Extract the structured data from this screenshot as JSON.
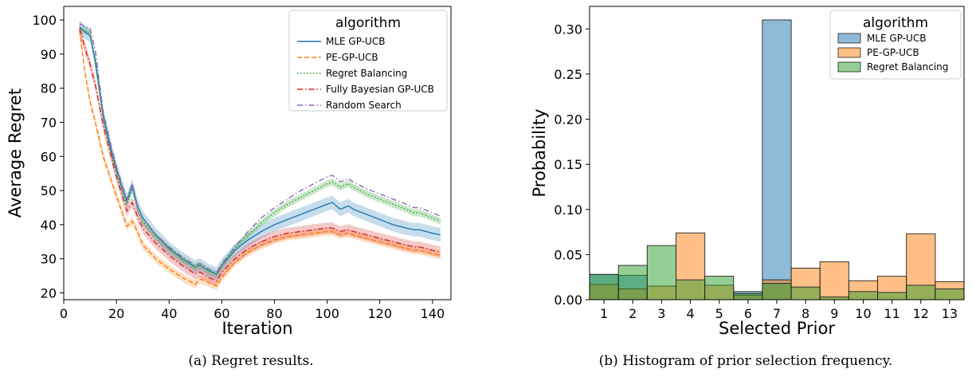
{
  "charts": [
    {
      "type": "line",
      "xlabel": "Iteration",
      "ylabel": "Average Regret",
      "xlim": [
        0,
        147
      ],
      "ylim": [
        18,
        104
      ],
      "xticks": [
        0,
        20,
        40,
        60,
        80,
        100,
        120,
        140
      ],
      "yticks": [
        20,
        30,
        40,
        50,
        60,
        70,
        80,
        90,
        100
      ],
      "legend_title": "algorithm",
      "legend_position": "upper-right",
      "caption": "(a) Regret results.",
      "series": [
        {
          "name": "MLE GP-UCB",
          "color": "#1f77b4",
          "dash": "solid",
          "band": 2.0,
          "x": [
            6,
            8,
            10,
            12,
            15,
            18,
            20,
            22,
            24,
            26,
            28,
            30,
            35,
            40,
            45,
            50,
            51,
            52,
            55,
            58,
            60,
            65,
            70,
            75,
            80,
            85,
            90,
            95,
            100,
            102,
            105,
            108,
            110,
            115,
            120,
            125,
            130,
            133,
            135,
            140,
            143
          ],
          "y": [
            98,
            96.5,
            95.5,
            88,
            72,
            62,
            56.5,
            51.5,
            47,
            51.5,
            45.5,
            42,
            37,
            33,
            30,
            27.5,
            28,
            28,
            26.5,
            25.5,
            28,
            32.5,
            35.5,
            38,
            40,
            41.5,
            43,
            44.5,
            46,
            46.5,
            44.5,
            45.5,
            44.5,
            43,
            41.5,
            40,
            39,
            38.5,
            38.5,
            37.5,
            37
          ]
        },
        {
          "name": "PE-GP-UCB",
          "color": "#ff7f0e",
          "dash": "dashed",
          "band": 1.2,
          "x": [
            6,
            8,
            10,
            12,
            15,
            18,
            20,
            22,
            24,
            26,
            28,
            30,
            35,
            40,
            45,
            50,
            51,
            52,
            55,
            58,
            60,
            65,
            70,
            75,
            80,
            85,
            90,
            95,
            100,
            102,
            105,
            108,
            110,
            115,
            120,
            125,
            130,
            133,
            135,
            140,
            143
          ],
          "y": [
            97,
            85,
            76,
            70,
            60,
            53,
            48.5,
            44,
            39.5,
            41,
            38,
            34,
            30,
            27,
            24.5,
            22.5,
            23.5,
            24,
            23,
            22,
            24.5,
            29,
            32,
            34,
            35.5,
            36.5,
            37,
            37.5,
            38,
            38,
            37,
            37.5,
            37,
            36,
            35,
            34,
            33,
            32.5,
            32.5,
            31.5,
            31
          ]
        },
        {
          "name": "Regret Balancing",
          "color": "#2ca02c",
          "dash": "dotted",
          "band": 1.0,
          "x": [
            6,
            8,
            10,
            12,
            15,
            18,
            20,
            22,
            24,
            26,
            28,
            30,
            35,
            40,
            45,
            50,
            51,
            52,
            55,
            58,
            60,
            65,
            70,
            75,
            80,
            85,
            90,
            95,
            100,
            102,
            105,
            108,
            110,
            115,
            120,
            125,
            130,
            133,
            135,
            140,
            143
          ],
          "y": [
            97,
            97,
            96,
            87,
            71,
            61,
            55.5,
            50.5,
            46,
            50.5,
            44.5,
            41,
            36.5,
            33,
            30,
            27.5,
            28,
            28,
            26.5,
            25.5,
            28,
            33,
            37,
            40.5,
            43.5,
            46,
            48,
            50,
            52,
            52.5,
            51,
            52,
            51,
            49,
            47.5,
            46,
            44.5,
            43.5,
            43.5,
            42,
            41
          ]
        },
        {
          "name": "Fully Bayesian GP-UCB",
          "color": "#d62728",
          "dash": "dashdot",
          "band": 1.6,
          "x": [
            6,
            8,
            10,
            12,
            15,
            18,
            20,
            22,
            24,
            26,
            28,
            30,
            35,
            40,
            45,
            50,
            51,
            52,
            55,
            58,
            60,
            65,
            70,
            75,
            80,
            85,
            90,
            95,
            100,
            102,
            105,
            108,
            110,
            115,
            120,
            125,
            130,
            133,
            135,
            140,
            143
          ],
          "y": [
            97.5,
            92,
            87,
            81,
            69,
            60,
            54,
            49,
            44,
            46.5,
            42.5,
            39,
            34.5,
            31,
            28,
            25.5,
            26,
            26,
            24.5,
            23.5,
            26,
            30,
            33,
            35,
            36.5,
            37.5,
            38,
            38.5,
            39,
            39,
            38,
            38.5,
            38,
            37,
            36,
            35,
            34,
            33.5,
            33.5,
            32.5,
            32
          ]
        },
        {
          "name": "Random Search",
          "color": "#9467bd",
          "dash": "dashdot",
          "band": 0,
          "x": [
            6,
            8,
            10,
            12,
            15,
            18,
            20,
            22,
            24,
            26,
            28,
            30,
            35,
            40,
            45,
            50,
            51,
            52,
            55,
            58,
            60,
            65,
            70,
            75,
            80,
            85,
            90,
            95,
            100,
            102,
            105,
            108,
            110,
            115,
            120,
            125,
            130,
            133,
            135,
            140,
            143
          ],
          "y": [
            99,
            98,
            97.5,
            91,
            73,
            63,
            57,
            52,
            47.5,
            52,
            45.5,
            42,
            37,
            33.5,
            30.5,
            28,
            28.5,
            28.5,
            27,
            26,
            28.5,
            33.5,
            38,
            42,
            45,
            47.5,
            50,
            52,
            54,
            54.5,
            52.5,
            53.5,
            52.5,
            50.5,
            49,
            47.5,
            46,
            45,
            45,
            43.5,
            42.5
          ]
        }
      ]
    },
    {
      "type": "bar",
      "xlabel": "Selected Prior",
      "ylabel": "Probability",
      "ylim": [
        0,
        0.325
      ],
      "yticks": [
        0.0,
        0.05,
        0.1,
        0.15,
        0.2,
        0.25,
        0.3
      ],
      "ytick_labels": [
        "0.00",
        "0.05",
        "0.10",
        "0.15",
        "0.20",
        "0.25",
        "0.30"
      ],
      "categories": [
        "1",
        "2",
        "3",
        "4",
        "5",
        "6",
        "7",
        "8",
        "9",
        "10",
        "11",
        "12",
        "13"
      ],
      "legend_title": "algorithm",
      "legend_position": "upper-right",
      "caption": "(b) Histogram of prior selection frequency.",
      "series": [
        {
          "name": "MLE GP-UCB",
          "color": "#1f77b4",
          "values": [
            0.028,
            0.027,
            0.0,
            0.0,
            0.0,
            0.009,
            0.31,
            0.0,
            0.0,
            0.0,
            0.0,
            0.0,
            0.0
          ]
        },
        {
          "name": "PE-GP-UCB",
          "color": "#ff7f0e",
          "values": [
            0.017,
            0.012,
            0.015,
            0.074,
            0.016,
            0.005,
            0.022,
            0.035,
            0.042,
            0.021,
            0.026,
            0.073,
            0.02
          ]
        },
        {
          "name": "Regret Balancing",
          "color": "#2ca02c",
          "values": [
            0.028,
            0.038,
            0.06,
            0.022,
            0.026,
            0.007,
            0.018,
            0.014,
            0.003,
            0.009,
            0.008,
            0.016,
            0.012
          ]
        }
      ]
    }
  ]
}
